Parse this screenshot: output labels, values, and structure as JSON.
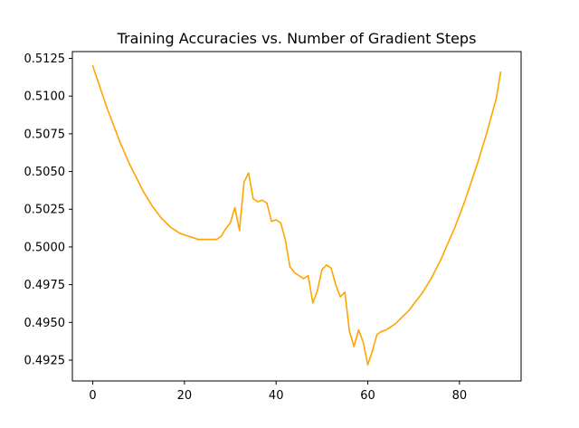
{
  "chart_data": {
    "type": "line",
    "title": "Training Accuracies vs. Number of Gradient Steps",
    "xlabel": "",
    "ylabel": "",
    "xlim": [
      -4.45,
      93.45
    ],
    "ylim": [
      0.49112,
      0.51295
    ],
    "xticks": [
      0,
      20,
      40,
      60,
      80
    ],
    "xtick_labels": [
      "0",
      "20",
      "40",
      "60",
      "80"
    ],
    "yticks": [
      0.4925,
      0.495,
      0.4975,
      0.5,
      0.5025,
      0.505,
      0.5075,
      0.51,
      0.5125
    ],
    "ytick_labels": [
      "0.4925",
      "0.4950",
      "0.4975",
      "0.5000",
      "0.5025",
      "0.5050",
      "0.5075",
      "0.5100",
      "0.5125"
    ],
    "grid": false,
    "color": "#ffa500",
    "series": [
      {
        "x": [
          0,
          1,
          2,
          3,
          4,
          5,
          6,
          7,
          8,
          9,
          10,
          11,
          12,
          13,
          14,
          15,
          16,
          17,
          18,
          19,
          20,
          21,
          22,
          23,
          24,
          25,
          26,
          27,
          28,
          29,
          30,
          31,
          32,
          33,
          34,
          35,
          36,
          37,
          38,
          39,
          40,
          41,
          42,
          43,
          44,
          45,
          46,
          47,
          48,
          49,
          50,
          51,
          52,
          53,
          54,
          55,
          56,
          57,
          58,
          59,
          60,
          61,
          62,
          63,
          64,
          65,
          66,
          67,
          68,
          69,
          70,
          71,
          72,
          73,
          74,
          75,
          76,
          77,
          78,
          79,
          80,
          81,
          82,
          83,
          84,
          85,
          86,
          87,
          88,
          89
        ],
        "y": [
          0.512,
          0.5111,
          0.5102,
          0.5093,
          0.5085,
          0.5077,
          0.5069,
          0.5062,
          0.5055,
          0.5049,
          0.5043,
          0.5037,
          0.5032,
          0.5027,
          0.5023,
          0.5019,
          0.5016,
          0.5013,
          0.5011,
          0.5009,
          0.5008,
          0.5007,
          0.5006,
          0.5005,
          0.5005,
          0.5005,
          0.5005,
          0.5005,
          0.5007,
          0.5012,
          0.5016,
          0.5026,
          0.5011,
          0.5043,
          0.5049,
          0.5032,
          0.503,
          0.5031,
          0.5029,
          0.5017,
          0.5018,
          0.5016,
          0.5005,
          0.4987,
          0.4983,
          0.4981,
          0.4979,
          0.4981,
          0.4963,
          0.4971,
          0.4985,
          0.4988,
          0.4986,
          0.4975,
          0.4967,
          0.497,
          0.4944,
          0.4934,
          0.4945,
          0.4937,
          0.4922,
          0.4931,
          0.4942,
          0.4944,
          0.4945,
          0.4947,
          0.4949,
          0.4952,
          0.4955,
          0.4958,
          0.4962,
          0.4966,
          0.497,
          0.4975,
          0.498,
          0.4986,
          0.4992,
          0.4999,
          0.5006,
          0.5013,
          0.5021,
          0.5029,
          0.5038,
          0.5047,
          0.5056,
          0.5066,
          0.5076,
          0.5087,
          0.5098,
          0.5116
        ]
      }
    ]
  }
}
